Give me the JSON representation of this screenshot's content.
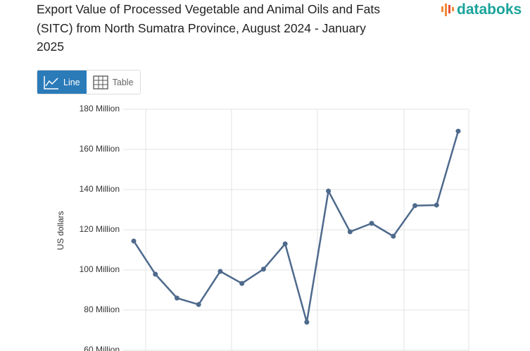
{
  "title": "Export Value of Processed Vegetable and Animal Oils and Fats (SITC) from North Sumatra Province, August 2024 - January 2025",
  "logo": "databoks",
  "buttons": [
    "Line",
    "Table"
  ],
  "chart_data": {
    "type": "line",
    "ylabel": "US dollars",
    "categories": [
      null,
      null,
      null,
      null,
      null,
      null,
      null,
      null,
      null,
      null,
      null,
      null,
      null,
      null,
      null,
      null
    ],
    "series": [
      {
        "name": "Export Value",
        "color": "#4e6a8c",
        "values": [
          114400000,
          97900000,
          86000000,
          82800000,
          99300000,
          93300000,
          100400000,
          113000000,
          74000000,
          139300000,
          119000000,
          123200000,
          116800000,
          132000000,
          132300000,
          169100000
        ]
      }
    ],
    "ylim": [
      60000000,
      180000000
    ],
    "yticks": [
      {
        "value": 60000000,
        "label": "60 Million"
      },
      {
        "value": 80000000,
        "label": "80 Million"
      },
      {
        "value": 100000000,
        "label": "100 Million"
      },
      {
        "value": 120000000,
        "label": "120 Million"
      },
      {
        "value": 140000000,
        "label": "140 Million"
      },
      {
        "value": 160000000,
        "label": "160 Million"
      },
      {
        "value": 180000000,
        "label": "180 Million"
      }
    ],
    "grid": true
  }
}
